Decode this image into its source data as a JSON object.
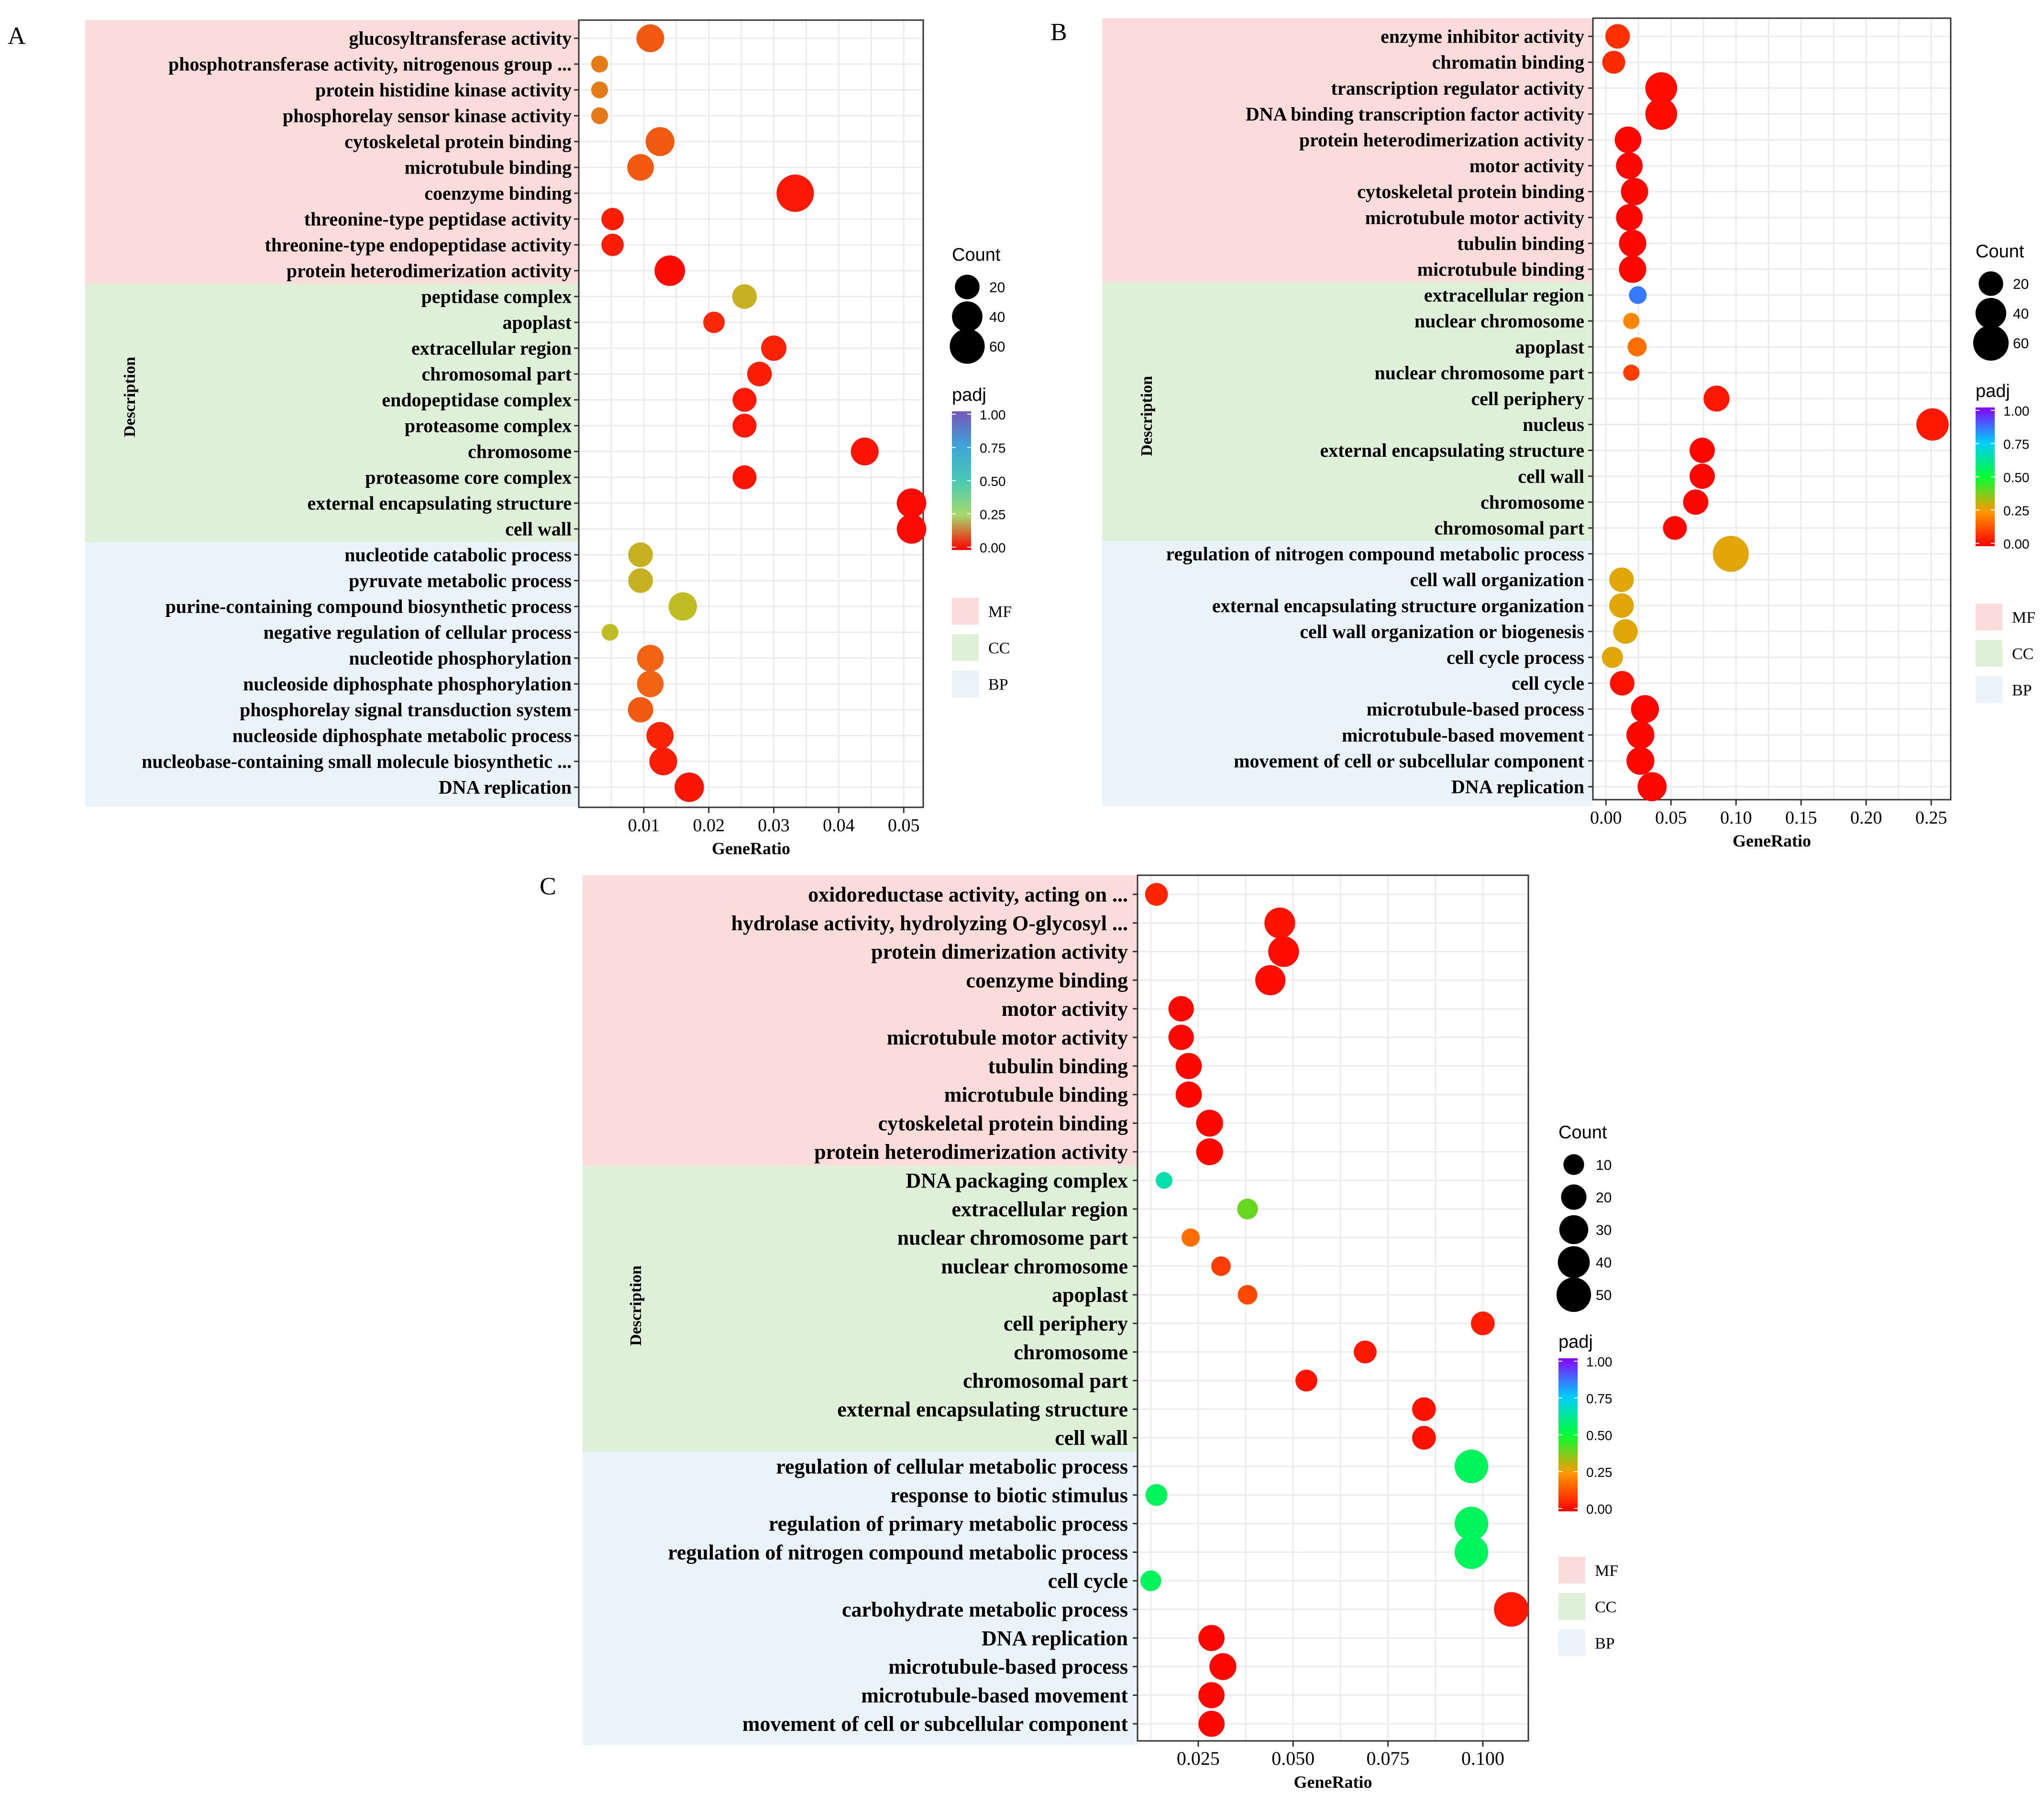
{
  "chart_data": [
    {
      "type": "scatter",
      "panel_label": "A",
      "xlabel": "GeneRatio",
      "ylabel": "Description",
      "xlim": [
        0.0,
        0.053
      ],
      "xticks": [
        0.01,
        0.02,
        0.03,
        0.04,
        0.05
      ],
      "xtick_labels": [
        "0.01",
        "0.02",
        "0.03",
        "0.04",
        "0.05"
      ],
      "size_legend": {
        "title": "Count",
        "values": [
          20,
          40,
          60
        ]
      },
      "color_legend": {
        "title": "padj",
        "ticks": [
          "1.00",
          "0.75",
          "0.50",
          "0.25",
          "0.00"
        ],
        "scale": "rainbow"
      },
      "category_legend": [
        {
          "label": "MF",
          "color": "#fcdbdb"
        },
        {
          "label": "CC",
          "color": "#dff0d8"
        },
        {
          "label": "BP",
          "color": "#eaf3fa"
        }
      ],
      "points": [
        {
          "term": "glucosyltransferase activity",
          "cat": "MF",
          "x": 0.011,
          "count": 30,
          "padj": 0.18
        },
        {
          "term": "phosphotransferase activity, nitrogenous group ...",
          "cat": "MF",
          "x": 0.0032,
          "count": 4,
          "padj": 0.22
        },
        {
          "term": "protein histidine kinase activity",
          "cat": "MF",
          "x": 0.0032,
          "count": 4,
          "padj": 0.22
        },
        {
          "term": "phosphorelay sensor kinase activity",
          "cat": "MF",
          "x": 0.0032,
          "count": 4,
          "padj": 0.22
        },
        {
          "term": "cytoskeletal protein binding",
          "cat": "MF",
          "x": 0.0125,
          "count": 34,
          "padj": 0.18
        },
        {
          "term": "microtubule binding",
          "cat": "MF",
          "x": 0.0095,
          "count": 26,
          "padj": 0.18
        },
        {
          "term": "coenzyme binding",
          "cat": "MF",
          "x": 0.0333,
          "count": 72,
          "padj": 0.05
        },
        {
          "term": "threonine-type peptidase activity",
          "cat": "MF",
          "x": 0.0052,
          "count": 14,
          "padj": 0.06
        },
        {
          "term": "threonine-type endopeptidase activity",
          "cat": "MF",
          "x": 0.0052,
          "count": 14,
          "padj": 0.06
        },
        {
          "term": "protein heterodimerization activity",
          "cat": "MF",
          "x": 0.014,
          "count": 40,
          "padj": 0.02
        },
        {
          "term": "peptidase complex",
          "cat": "CC",
          "x": 0.0255,
          "count": 20,
          "padj": 0.27
        },
        {
          "term": "apoplast",
          "cat": "CC",
          "x": 0.0208,
          "count": 12,
          "padj": 0.08
        },
        {
          "term": "extracellular region",
          "cat": "CC",
          "x": 0.03,
          "count": 22,
          "padj": 0.07
        },
        {
          "term": "chromosomal part",
          "cat": "CC",
          "x": 0.0278,
          "count": 20,
          "padj": 0.06
        },
        {
          "term": "endopeptidase complex",
          "cat": "CC",
          "x": 0.0255,
          "count": 18,
          "padj": 0.05
        },
        {
          "term": "proteasome complex",
          "cat": "CC",
          "x": 0.0255,
          "count": 18,
          "padj": 0.05
        },
        {
          "term": "chromosome",
          "cat": "CC",
          "x": 0.044,
          "count": 30,
          "padj": 0.04
        },
        {
          "term": "proteasome core complex",
          "cat": "CC",
          "x": 0.0255,
          "count": 18,
          "padj": 0.04
        },
        {
          "term": "external encapsulating structure",
          "cat": "CC",
          "x": 0.0512,
          "count": 36,
          "padj": 0.02
        },
        {
          "term": "cell wall",
          "cat": "CC",
          "x": 0.0512,
          "count": 36,
          "padj": 0.02
        },
        {
          "term": "nucleotide catabolic process",
          "cat": "BP",
          "x": 0.0095,
          "count": 20,
          "padj": 0.27
        },
        {
          "term": "pyruvate metabolic process",
          "cat": "BP",
          "x": 0.0095,
          "count": 20,
          "padj": 0.27
        },
        {
          "term": "purine-containing compound biosynthetic process",
          "cat": "BP",
          "x": 0.016,
          "count": 32,
          "padj": 0.28
        },
        {
          "term": "negative regulation of cellular process",
          "cat": "BP",
          "x": 0.0048,
          "count": 4,
          "padj": 0.28
        },
        {
          "term": "nucleotide phosphorylation",
          "cat": "BP",
          "x": 0.011,
          "count": 26,
          "padj": 0.2
        },
        {
          "term": "nucleoside diphosphate phosphorylation",
          "cat": "BP",
          "x": 0.011,
          "count": 26,
          "padj": 0.2
        },
        {
          "term": "phosphorelay signal transduction system",
          "cat": "BP",
          "x": 0.0095,
          "count": 22,
          "padj": 0.18
        },
        {
          "term": "nucleoside diphosphate metabolic process",
          "cat": "BP",
          "x": 0.0125,
          "count": 28,
          "padj": 0.07
        },
        {
          "term": "nucleobase-containing small molecule biosynthetic ...",
          "cat": "BP",
          "x": 0.013,
          "count": 30,
          "padj": 0.06
        },
        {
          "term": "DNA replication",
          "cat": "BP",
          "x": 0.017,
          "count": 36,
          "padj": 0.04
        }
      ]
    },
    {
      "type": "scatter",
      "panel_label": "B",
      "xlabel": "GeneRatio",
      "ylabel": "Description",
      "xlim": [
        -0.01,
        0.265
      ],
      "xticks": [
        0.0,
        0.05,
        0.1,
        0.15,
        0.2,
        0.25
      ],
      "xtick_labels": [
        "0.00",
        "0.05",
        "0.10",
        "0.15",
        "0.20",
        "0.25"
      ],
      "size_legend": {
        "title": "Count",
        "values": [
          20,
          40,
          60
        ]
      },
      "color_legend": {
        "title": "padj",
        "ticks": [
          "1.00",
          "0.75",
          "0.50",
          "0.25",
          "0.00"
        ],
        "scale": "rainbow"
      },
      "category_legend": [
        {
          "label": "MF",
          "color": "#fcdbdb"
        },
        {
          "label": "CC",
          "color": "#dff0d8"
        },
        {
          "label": "BP",
          "color": "#eaf3fa"
        }
      ],
      "points": [
        {
          "term": "enzyme inhibitor activity",
          "cat": "MF",
          "x": 0.009,
          "count": 20,
          "padj": 0.08
        },
        {
          "term": "chromatin binding",
          "cat": "MF",
          "x": 0.006,
          "count": 16,
          "padj": 0.07
        },
        {
          "term": "transcription regulator activity",
          "cat": "MF",
          "x": 0.0425,
          "count": 44,
          "padj": 0.02
        },
        {
          "term": "DNA binding transcription factor activity",
          "cat": "MF",
          "x": 0.0425,
          "count": 44,
          "padj": 0.02
        },
        {
          "term": "protein heterodimerization activity",
          "cat": "MF",
          "x": 0.017,
          "count": 26,
          "padj": 0.01
        },
        {
          "term": "motor activity",
          "cat": "MF",
          "x": 0.018,
          "count": 26,
          "padj": 0.01
        },
        {
          "term": "cytoskeletal protein binding",
          "cat": "MF",
          "x": 0.022,
          "count": 28,
          "padj": 0.01
        },
        {
          "term": "microtubule motor activity",
          "cat": "MF",
          "x": 0.018,
          "count": 26,
          "padj": 0.01
        },
        {
          "term": "tubulin binding",
          "cat": "MF",
          "x": 0.0205,
          "count": 28,
          "padj": 0.01
        },
        {
          "term": "microtubule binding",
          "cat": "MF",
          "x": 0.0205,
          "count": 28,
          "padj": 0.01
        },
        {
          "term": "extracellular region",
          "cat": "CC",
          "x": 0.0245,
          "count": 6,
          "padj": 0.85
        },
        {
          "term": "nuclear chromosome",
          "cat": "CC",
          "x": 0.0195,
          "count": 4,
          "padj": 0.22
        },
        {
          "term": "apoplast",
          "cat": "CC",
          "x": 0.024,
          "count": 8,
          "padj": 0.18
        },
        {
          "term": "nuclear chromosome part",
          "cat": "CC",
          "x": 0.0195,
          "count": 4,
          "padj": 0.1
        },
        {
          "term": "cell periphery",
          "cat": "CC",
          "x": 0.085,
          "count": 24,
          "padj": 0.04
        },
        {
          "term": "nucleus",
          "cat": "CC",
          "x": 0.251,
          "count": 46,
          "padj": 0.04
        },
        {
          "term": "external encapsulating structure",
          "cat": "CC",
          "x": 0.074,
          "count": 22,
          "padj": 0.01
        },
        {
          "term": "cell wall",
          "cat": "CC",
          "x": 0.074,
          "count": 22,
          "padj": 0.01
        },
        {
          "term": "chromosome",
          "cat": "CC",
          "x": 0.069,
          "count": 22,
          "padj": 0.01
        },
        {
          "term": "chromosomal part",
          "cat": "CC",
          "x": 0.053,
          "count": 18,
          "padj": 0.01
        },
        {
          "term": "regulation of nitrogen compound metabolic process",
          "cat": "BP",
          "x": 0.096,
          "count": 62,
          "padj": 0.28
        },
        {
          "term": "cell wall organization",
          "cat": "BP",
          "x": 0.012,
          "count": 20,
          "padj": 0.28
        },
        {
          "term": "external encapsulating structure organization",
          "cat": "BP",
          "x": 0.012,
          "count": 20,
          "padj": 0.28
        },
        {
          "term": "cell wall organization or biogenesis",
          "cat": "BP",
          "x": 0.015,
          "count": 20,
          "padj": 0.28
        },
        {
          "term": "cell cycle process",
          "cat": "BP",
          "x": 0.005,
          "count": 12,
          "padj": 0.28
        },
        {
          "term": "cell cycle",
          "cat": "BP",
          "x": 0.0125,
          "count": 20,
          "padj": 0.03
        },
        {
          "term": "microtubule-based process",
          "cat": "BP",
          "x": 0.03,
          "count": 30,
          "padj": 0.01
        },
        {
          "term": "microtubule-based movement",
          "cat": "BP",
          "x": 0.0265,
          "count": 30,
          "padj": 0.01
        },
        {
          "term": "movement of cell or subcellular component",
          "cat": "BP",
          "x": 0.0265,
          "count": 30,
          "padj": 0.01
        },
        {
          "term": "DNA replication",
          "cat": "BP",
          "x": 0.0355,
          "count": 34,
          "padj": 0.01
        }
      ]
    },
    {
      "type": "scatter",
      "panel_label": "C",
      "xlabel": "GeneRatio",
      "ylabel": "Description",
      "xlim": [
        0.009,
        0.112
      ],
      "xticks": [
        0.025,
        0.05,
        0.075,
        0.1
      ],
      "xtick_labels": [
        "0.025",
        "0.050",
        "0.075",
        "0.100"
      ],
      "size_legend": {
        "title": "Count",
        "values": [
          10,
          20,
          30,
          40,
          50
        ]
      },
      "color_legend": {
        "title": "padj",
        "ticks": [
          "1.00",
          "0.75",
          "0.50",
          "0.25",
          "0.00"
        ],
        "scale": "rainbow"
      },
      "category_legend": [
        {
          "label": "MF",
          "color": "#fcdbdb"
        },
        {
          "label": "CC",
          "color": "#dff0d8"
        },
        {
          "label": "BP",
          "color": "#eaf3fa"
        }
      ],
      "points": [
        {
          "term": "oxidoreductase activity, acting on ...",
          "cat": "MF",
          "x": 0.014,
          "count": 14,
          "padj": 0.06
        },
        {
          "term": "hydrolase activity, hydrolyzing O-glycosyl ...",
          "cat": "MF",
          "x": 0.0465,
          "count": 36,
          "padj": 0.03
        },
        {
          "term": "protein dimerization activity",
          "cat": "MF",
          "x": 0.0475,
          "count": 36,
          "padj": 0.02
        },
        {
          "term": "coenzyme binding",
          "cat": "MF",
          "x": 0.044,
          "count": 34,
          "padj": 0.02
        },
        {
          "term": "motor activity",
          "cat": "MF",
          "x": 0.0205,
          "count": 20,
          "padj": 0.01
        },
        {
          "term": "microtubule motor activity",
          "cat": "MF",
          "x": 0.0205,
          "count": 20,
          "padj": 0.01
        },
        {
          "term": "tubulin binding",
          "cat": "MF",
          "x": 0.0225,
          "count": 22,
          "padj": 0.01
        },
        {
          "term": "microtubule binding",
          "cat": "MF",
          "x": 0.0225,
          "count": 22,
          "padj": 0.01
        },
        {
          "term": "cytoskeletal protein binding",
          "cat": "MF",
          "x": 0.028,
          "count": 24,
          "padj": 0.01
        },
        {
          "term": "protein heterodimerization activity",
          "cat": "MF",
          "x": 0.028,
          "count": 24,
          "padj": 0.01
        },
        {
          "term": "DNA packaging complex",
          "cat": "CC",
          "x": 0.016,
          "count": 4,
          "padj": 0.65
        },
        {
          "term": "extracellular region",
          "cat": "CC",
          "x": 0.038,
          "count": 10,
          "padj": 0.4
        },
        {
          "term": "nuclear chromosome part",
          "cat": "CC",
          "x": 0.023,
          "count": 6,
          "padj": 0.18
        },
        {
          "term": "nuclear chromosome",
          "cat": "CC",
          "x": 0.031,
          "count": 8,
          "padj": 0.1
        },
        {
          "term": "apoplast",
          "cat": "CC",
          "x": 0.038,
          "count": 8,
          "padj": 0.12
        },
        {
          "term": "cell periphery",
          "cat": "CC",
          "x": 0.1,
          "count": 16,
          "padj": 0.05
        },
        {
          "term": "chromosome",
          "cat": "CC",
          "x": 0.069,
          "count": 14,
          "padj": 0.04
        },
        {
          "term": "chromosomal part",
          "cat": "CC",
          "x": 0.0535,
          "count": 12,
          "padj": 0.03
        },
        {
          "term": "external encapsulating structure",
          "cat": "CC",
          "x": 0.0845,
          "count": 16,
          "padj": 0.03
        },
        {
          "term": "cell wall",
          "cat": "CC",
          "x": 0.0845,
          "count": 16,
          "padj": 0.03
        },
        {
          "term": "regulation of cellular metabolic process",
          "cat": "BP",
          "x": 0.097,
          "count": 46,
          "padj": 0.55
        },
        {
          "term": "response to biotic stimulus",
          "cat": "BP",
          "x": 0.014,
          "count": 12,
          "padj": 0.55
        },
        {
          "term": "regulation of primary metabolic process",
          "cat": "BP",
          "x": 0.097,
          "count": 46,
          "padj": 0.55
        },
        {
          "term": "regulation of nitrogen compound metabolic process",
          "cat": "BP",
          "x": 0.097,
          "count": 46,
          "padj": 0.55
        },
        {
          "term": "cell cycle",
          "cat": "BP",
          "x": 0.0125,
          "count": 10,
          "padj": 0.55
        },
        {
          "term": "carbohydrate metabolic process",
          "cat": "BP",
          "x": 0.1075,
          "count": 50,
          "padj": 0.04
        },
        {
          "term": "DNA replication",
          "cat": "BP",
          "x": 0.0285,
          "count": 22,
          "padj": 0.01
        },
        {
          "term": "microtubule-based process",
          "cat": "BP",
          "x": 0.0315,
          "count": 24,
          "padj": 0.01
        },
        {
          "term": "microtubule-based movement",
          "cat": "BP",
          "x": 0.0285,
          "count": 22,
          "padj": 0.01
        },
        {
          "term": "movement of cell or subcellular component",
          "cat": "BP",
          "x": 0.0285,
          "count": 22,
          "padj": 0.01
        }
      ]
    }
  ]
}
